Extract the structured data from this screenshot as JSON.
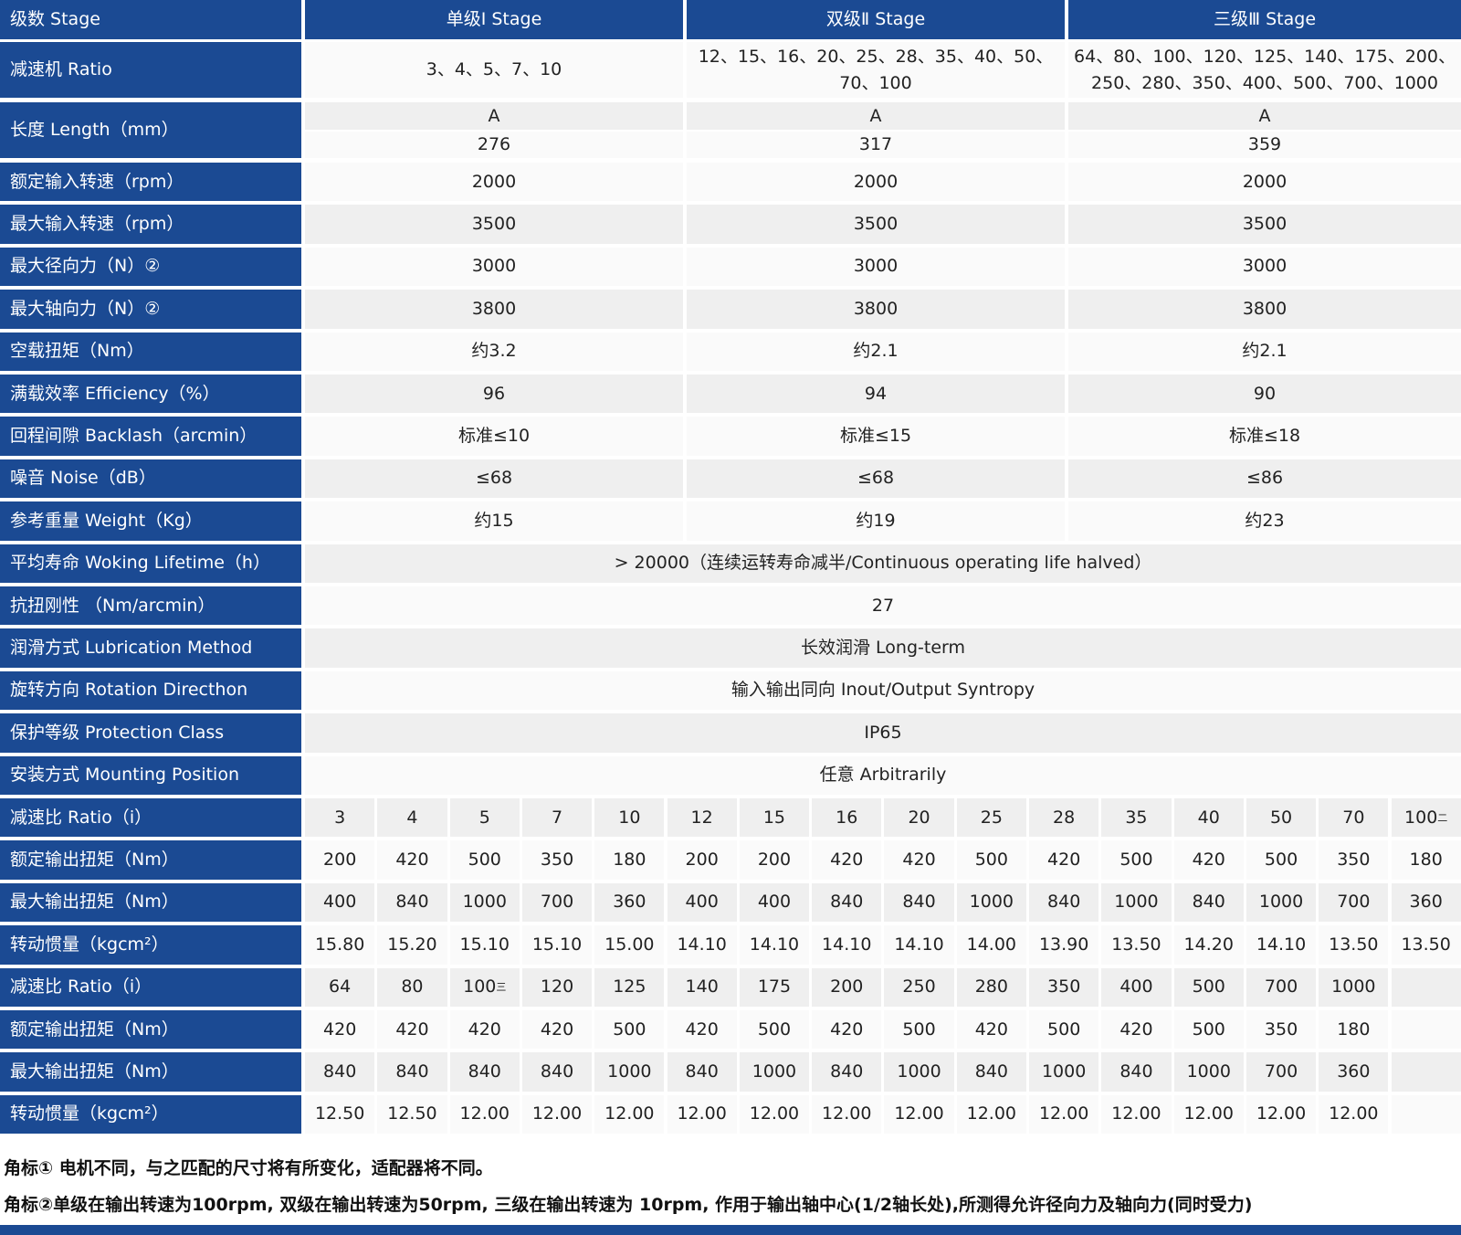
{
  "header": {
    "label": "级数 Stage",
    "stages": [
      "单级Ⅰ Stage",
      "双级Ⅱ Stage",
      "三级Ⅲ Stage"
    ]
  },
  "rows": [
    {
      "label": "减速机 Ratio",
      "values": [
        "3、4、5、7、10",
        "12、15、16、20、25、28、35、40、50、70、100",
        "64、80、100、120、125、140、175、200、250、280、350、400、500、700、1000"
      ]
    },
    {
      "label": "长度 Length（mm）",
      "sub_rows": [
        [
          "A",
          "A",
          "A"
        ],
        [
          "276",
          "317",
          "359"
        ]
      ]
    },
    {
      "label": "额定输入转速（rpm）",
      "values": [
        "2000",
        "2000",
        "2000"
      ]
    },
    {
      "label": "最大输入转速（rpm）",
      "values": [
        "3500",
        "3500",
        "3500"
      ]
    },
    {
      "label": "最大径向力（N）②",
      "values": [
        "3000",
        "3000",
        "3000"
      ]
    },
    {
      "label": "最大轴向力（N）②",
      "values": [
        "3800",
        "3800",
        "3800"
      ]
    },
    {
      "label": "空载扭矩（Nm）",
      "values": [
        "约3.2",
        "约2.1",
        "约2.1"
      ]
    },
    {
      "label": "满载效率 Efficiency（%）",
      "values": [
        "96",
        "94",
        "90"
      ]
    },
    {
      "label": "回程间隙 Backlash（arcmin）",
      "values": [
        "标准≤10",
        "标准≤15",
        "标准≤18"
      ]
    },
    {
      "label": "噪音 Noise（dB）",
      "values": [
        "≤68",
        "≤68",
        "≤86"
      ]
    },
    {
      "label": "参考重量 Weight（Kg）",
      "values": [
        "约15",
        "约19",
        "约23"
      ]
    },
    {
      "label": "平均寿命 Woking Lifetime（h）",
      "value": "> 20000（连续运转寿命减半/Continuous operating life halved）"
    },
    {
      "label": "抗扭刚性 （Nm/arcmin）",
      "value": "27"
    },
    {
      "label": "润滑方式 Lubrication Method",
      "value": "长效润滑 Long-term"
    },
    {
      "label": "旋转方向 Rotation Directhon",
      "value": "输入输出同向 Inout/Output Syntropy"
    },
    {
      "label": "保护等级 Protection Class",
      "value": "IP65"
    },
    {
      "label": "安装方式 Mounting Position",
      "value": "任意 Arbitrarily"
    },
    {
      "label": "减速比 Ratio（i）",
      "values": [
        "3",
        "4",
        "5",
        "7",
        "10",
        "12",
        "15",
        "16",
        "20",
        "25",
        "28",
        "35",
        "40",
        "50",
        "70",
        {
          "text": "100",
          "sup": "二"
        }
      ]
    },
    {
      "label": "额定输出扭矩（Nm）",
      "values": [
        "200",
        "420",
        "500",
        "350",
        "180",
        "200",
        "200",
        "420",
        "420",
        "500",
        "420",
        "500",
        "420",
        "500",
        "350",
        "180"
      ]
    },
    {
      "label": "最大输出扭矩（Nm）",
      "values": [
        "400",
        "840",
        "1000",
        "700",
        "360",
        "400",
        "400",
        "840",
        "840",
        "1000",
        "840",
        "1000",
        "840",
        "1000",
        "700",
        "360"
      ]
    },
    {
      "label": "转动惯量（kgcm²）",
      "values": [
        "15.80",
        "15.20",
        "15.10",
        "15.10",
        "15.00",
        "14.10",
        "14.10",
        "14.10",
        "14.10",
        "14.00",
        "13.90",
        "13.50",
        "14.20",
        "14.10",
        "13.50",
        "13.50"
      ]
    },
    {
      "label": "减速比 Ratio（i）",
      "values": [
        "64",
        "80",
        {
          "text": "100",
          "sup": "三"
        },
        "120",
        "125",
        "140",
        "175",
        "200",
        "250",
        "280",
        "350",
        "400",
        "500",
        "700",
        "1000"
      ]
    },
    {
      "label": "额定输出扭矩（Nm）",
      "values": [
        "420",
        "420",
        "420",
        "420",
        "500",
        "420",
        "500",
        "420",
        "500",
        "420",
        "500",
        "420",
        "500",
        "350",
        "180"
      ]
    },
    {
      "label": "最大输出扭矩（Nm）",
      "values": [
        "840",
        "840",
        "840",
        "840",
        "1000",
        "840",
        "1000",
        "840",
        "1000",
        "840",
        "1000",
        "840",
        "1000",
        "700",
        "360"
      ]
    },
    {
      "label": "转动惯量（kgcm²）",
      "values": [
        "12.50",
        "12.50",
        "12.00",
        "12.00",
        "12.00",
        "12.00",
        "12.00",
        "12.00",
        "12.00",
        "12.00",
        "12.00",
        "12.00",
        "12.00",
        "12.00",
        "12.00"
      ]
    }
  ],
  "footnotes": [
    "角标① 电机不同，与之匹配的尺寸将有所变化，适配器将不同。",
    "角标②单级在输出转速为100rpm, 双级在输出转速为50rpm, 三级在输出转速为 10rpm, 作用于输出轴中心(1/2轴长处),所测得允许径向力及轴向力(同时受力)"
  ]
}
